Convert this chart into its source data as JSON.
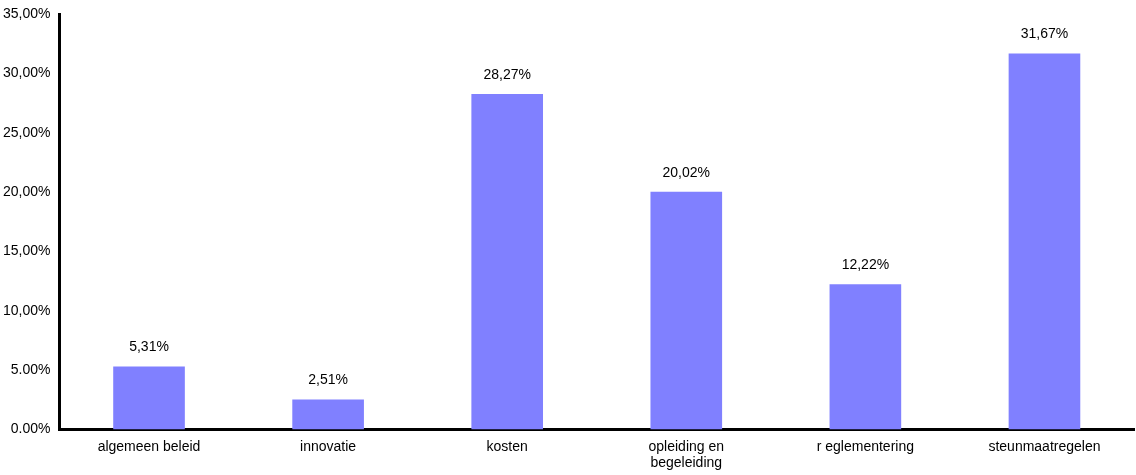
{
  "chart_data": {
    "type": "bar",
    "categories": [
      "algemeen beleid",
      "innovatie",
      "kosten",
      "opleiding en begeleiding",
      "r eglementering",
      "steunmaatregelen"
    ],
    "values": [
      5.31,
      2.51,
      28.27,
      20.02,
      12.22,
      31.67
    ],
    "value_labels": [
      "5,31%",
      "2,51%",
      "28,27%",
      "20,02%",
      "12,22%",
      "31,67%"
    ],
    "color": "#8080ff",
    "ylim": [
      0,
      35
    ],
    "yticks": [
      {
        "value": 0,
        "label": "0.00%"
      },
      {
        "value": 5,
        "label": "5.00%"
      },
      {
        "value": 10,
        "label": "10,00%"
      },
      {
        "value": 15,
        "label": "15,00%"
      },
      {
        "value": 20,
        "label": "20,00%"
      },
      {
        "value": 25,
        "label": "25,00%"
      },
      {
        "value": 30,
        "label": "30,00%"
      },
      {
        "value": 35,
        "label": "35,00%"
      }
    ],
    "grid": false,
    "legend": false
  }
}
